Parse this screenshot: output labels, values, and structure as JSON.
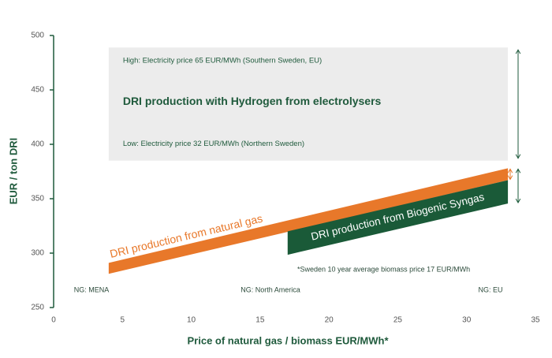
{
  "chart_data": {
    "type": "band",
    "x_label": "Price of natural gas / biomass EUR/MWh*",
    "y_label": "EUR / ton DRI",
    "xlim": [
      0,
      35
    ],
    "xticks": [
      0,
      5,
      10,
      15,
      20,
      25,
      30,
      35
    ],
    "ylim": [
      250,
      500
    ],
    "yticks": [
      250,
      300,
      350,
      400,
      450,
      500
    ],
    "axis_color": "#1f5a3c",
    "range_box": {
      "title": "DRI production with Hydrogen from electrolysers",
      "high_label": "High: Electricity price 65 EUR/MWh (Southern Sweden, EU)",
      "low_label": "Low: Electricity price 32 EUR/MWh (Northern Sweden)",
      "x": [
        4,
        33
      ],
      "low": 385,
      "high": 489,
      "color": "#ececec",
      "text_color": "#1f5a3c"
    },
    "series": [
      {
        "name": "DRI production from natural gas",
        "color": "#e8782a",
        "label_color": "#e8782a",
        "x": [
          4,
          33
        ],
        "low": [
          281,
          367
        ],
        "high": [
          291,
          378
        ]
      },
      {
        "name": "DRI production from Biogenic Syngas",
        "color": "#1a5a38",
        "label_color": "#ffffff",
        "x": [
          17,
          33
        ],
        "low": [
          298.5,
          345.6
        ],
        "high": [
          320,
          367
        ]
      }
    ],
    "annotations": [
      "NG: MENA",
      "NG: North America",
      "NG: EU"
    ],
    "footnote": "*Sweden 10 year average biomass price 17 EUR/MWh"
  }
}
